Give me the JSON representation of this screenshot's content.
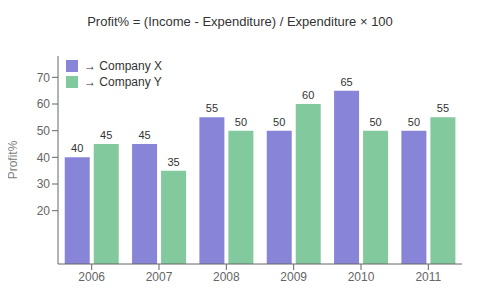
{
  "chart_data": {
    "type": "bar",
    "title": "Profit% = (Income - Expenditure) / Expenditure × 100",
    "categories": [
      "2006",
      "2007",
      "2008",
      "2009",
      "2010",
      "2011"
    ],
    "series": [
      {
        "name": "→ Company X",
        "color": "#8884d8",
        "values": [
          40,
          45,
          55,
          50,
          65,
          50
        ]
      },
      {
        "name": "→ Company Y",
        "color": "#82ca9d",
        "values": [
          45,
          35,
          50,
          60,
          50,
          55
        ]
      }
    ],
    "ylabel": "Profit%",
    "ylim": [
      0,
      78
    ],
    "yticks": [
      20,
      30,
      40,
      50,
      60,
      70
    ],
    "grid": false,
    "legend": "upper left",
    "data_labels": true
  }
}
